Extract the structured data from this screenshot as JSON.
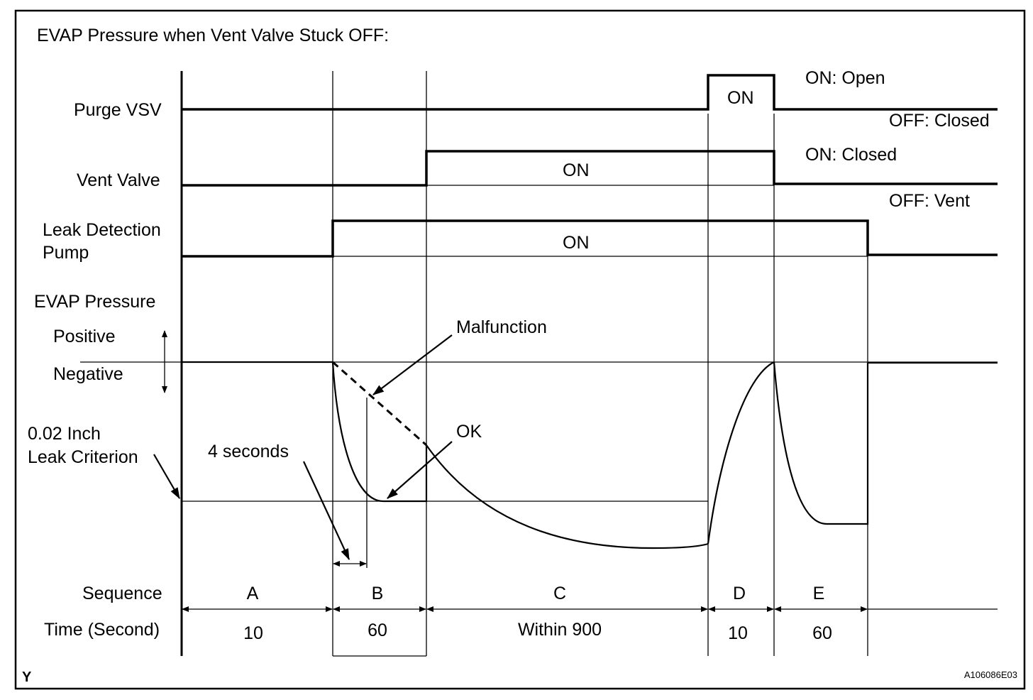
{
  "title": "EVAP Pressure when Vent Valve Stuck OFF:",
  "signals": {
    "purge_vsv": {
      "label": "Purge VSV",
      "on_text": "ON",
      "state_on": "ON: Open",
      "state_off": "OFF: Closed"
    },
    "vent_valve": {
      "label": "Vent Valve",
      "on_text": "ON",
      "state_on": "ON: Closed",
      "state_off": "OFF: Vent"
    },
    "leak_pump": {
      "label_line1": "Leak Detection",
      "label_line2": "Pump",
      "on_text": "ON"
    }
  },
  "pressure": {
    "label": "EVAP Pressure",
    "positive": "Positive",
    "negative": "Negative",
    "criterion_line1": "0.02 Inch",
    "criterion_line2": "Leak Criterion",
    "four_seconds": "4 seconds",
    "malfunction": "Malfunction",
    "ok": "OK"
  },
  "sequence": {
    "label": "Sequence",
    "time_label": "Time (Second)",
    "steps": [
      {
        "id": "A",
        "time": "10"
      },
      {
        "id": "B",
        "time": "60"
      },
      {
        "id": "C",
        "time": "Within 900"
      },
      {
        "id": "D",
        "time": "10"
      },
      {
        "id": "E",
        "time": "60"
      }
    ]
  },
  "footer": {
    "left_mark": "Y",
    "figure_code": "A106086E03"
  }
}
